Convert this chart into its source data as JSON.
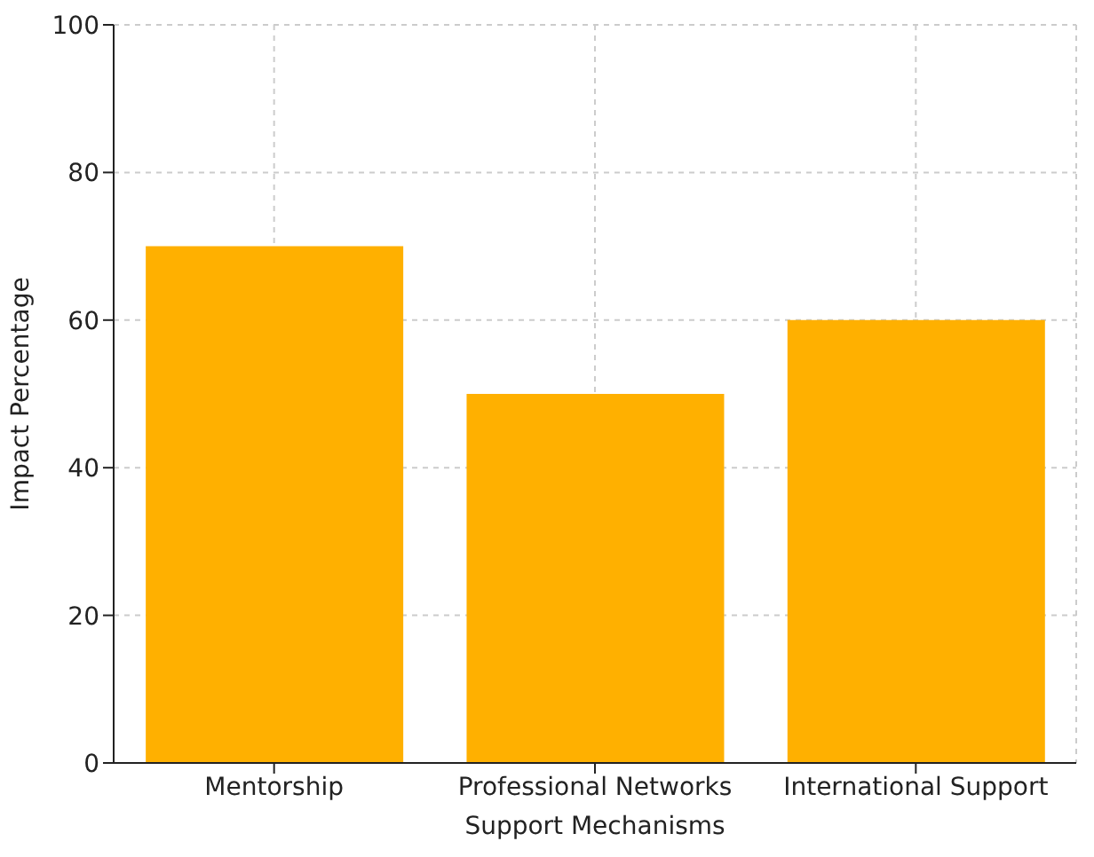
{
  "chart_data": {
    "type": "bar",
    "xlabel": "Support Mechanisms",
    "ylabel": "Impact Percentage",
    "categories": [
      "Mentorship",
      "Professional Networks",
      "International Support"
    ],
    "values": [
      70,
      50,
      60
    ],
    "color": "#ffb000",
    "ylim": [
      0,
      100
    ],
    "yticks": [
      0,
      20,
      40,
      60,
      80,
      100
    ],
    "grid": true
  }
}
